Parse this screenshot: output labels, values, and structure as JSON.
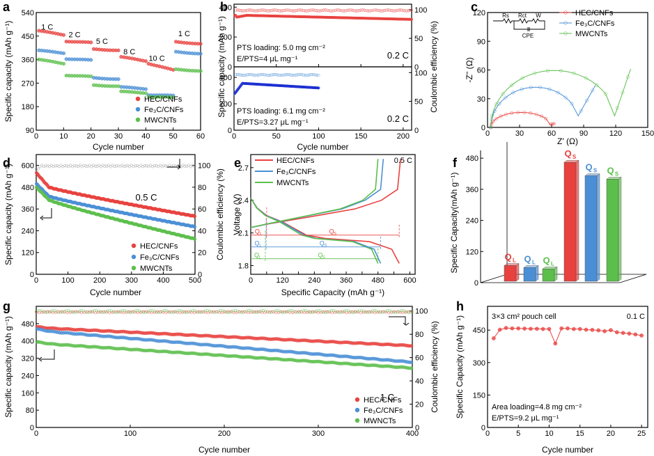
{
  "colors": {
    "hec": "#e8413e",
    "fe3c": "#4a8fd6",
    "mwcnt": "#5cbf4c",
    "axis": "#000000"
  },
  "chart_data": [
    {
      "panel": "a",
      "type": "scatter",
      "xlabel": "Cycle number",
      "ylabel": "Specific capacity (mAh g⁻¹)",
      "xlim": [
        0,
        60
      ],
      "ylim": [
        90,
        540
      ],
      "xticks": [
        0,
        10,
        20,
        30,
        40,
        50,
        60
      ],
      "yticks": [
        90,
        180,
        270,
        360,
        450,
        540
      ],
      "rate_labels": [
        {
          "text": "1 C",
          "x": 4,
          "y": 475
        },
        {
          "text": "2 C",
          "x": 14,
          "y": 445
        },
        {
          "text": "5 C",
          "x": 24,
          "y": 420
        },
        {
          "text": "8 C",
          "x": 34,
          "y": 380
        },
        {
          "text": "10 C",
          "x": 44,
          "y": 355
        },
        {
          "text": "1 C",
          "x": 54,
          "y": 450
        }
      ],
      "legend": [
        "HEC/CNFs",
        "Fe₃C/CNFs",
        "MWCNTs"
      ],
      "series": [
        {
          "name": "HEC/CNFs",
          "color_key": "hec",
          "steps": [
            {
              "from": 1,
              "to": 10,
              "start": 470,
              "end": 455
            },
            {
              "from": 11,
              "to": 20,
              "start": 430,
              "end": 425
            },
            {
              "from": 21,
              "to": 30,
              "start": 400,
              "end": 395
            },
            {
              "from": 31,
              "to": 40,
              "start": 370,
              "end": 355
            },
            {
              "from": 41,
              "to": 50,
              "start": 345,
              "end": 320
            },
            {
              "from": 51,
              "to": 60,
              "start": 428,
              "end": 420
            }
          ]
        },
        {
          "name": "Fe₃C/CNFs",
          "color_key": "fe3c",
          "steps": [
            {
              "from": 1,
              "to": 10,
              "start": 395,
              "end": 385
            },
            {
              "from": 11,
              "to": 20,
              "start": 363,
              "end": 358
            },
            {
              "from": 21,
              "to": 30,
              "start": 290,
              "end": 285
            },
            {
              "from": 31,
              "to": 40,
              "start": 255,
              "end": 248
            },
            {
              "from": 41,
              "to": 50,
              "start": 225,
              "end": 222
            },
            {
              "from": 51,
              "to": 60,
              "start": 390,
              "end": 382
            }
          ]
        },
        {
          "name": "MWCNTs",
          "color_key": "mwcnt",
          "steps": [
            {
              "from": 1,
              "to": 10,
              "start": 360,
              "end": 345
            },
            {
              "from": 11,
              "to": 20,
              "start": 300,
              "end": 295
            },
            {
              "from": 21,
              "to": 30,
              "start": 262,
              "end": 258
            },
            {
              "from": 31,
              "to": 40,
              "start": 238,
              "end": 232
            },
            {
              "from": 41,
              "to": 50,
              "start": 218,
              "end": 215
            },
            {
              "from": 51,
              "to": 60,
              "start": 323,
              "end": 316
            }
          ]
        }
      ]
    },
    {
      "panel": "b",
      "type": "scatter",
      "xlabel": "Cycle number",
      "ylabel": "Specific capacity (mAh g⁻¹)",
      "y2label": "Coulombic efficiency (%)",
      "xlim": [
        0,
        210
      ],
      "xticks": [
        0,
        50,
        100,
        150,
        200
      ],
      "top": {
        "ylim": [
          0,
          420
        ],
        "yticks": [
          0,
          200,
          400
        ],
        "y2ticks": [
          0,
          50,
          100
        ],
        "loading": "PTS loading: 5.0 mg cm⁻²",
        "ratio": "E/PTS=4 μL mg⁻¹",
        "rate": "0.2 C",
        "capacity": {
          "cycles": 210,
          "start": 345,
          "min": 330,
          "plateau": 345,
          "end": 318
        },
        "ce": {
          "cycles": 210,
          "value": 99
        }
      },
      "bottom": {
        "ylim": [
          0,
          480
        ],
        "yticks": [
          0,
          200,
          400
        ],
        "y2ticks": [
          0,
          50,
          100
        ],
        "loading": "PTS loading: 6.1 mg cm⁻²",
        "ratio": "E/PTS=3.27 μL mg⁻¹",
        "rate": "0.2 C",
        "capacity": {
          "cycles": 100,
          "start": 270,
          "plateau": 355,
          "end": 320
        },
        "ce": {
          "cycles": 100,
          "value": 96
        }
      }
    },
    {
      "panel": "c",
      "type": "line",
      "xlabel": "Z' (Ω)",
      "ylabel": "-Z'' (Ω)",
      "xlim": [
        0,
        150
      ],
      "ylim": [
        0,
        120
      ],
      "xticks": [
        0,
        30,
        60,
        90,
        120,
        150
      ],
      "yticks": [
        0,
        30,
        60,
        90,
        120
      ],
      "legend": [
        "HEC/CNFs",
        "Fe₃C/CNFs",
        "MWCNTs"
      ],
      "circuit": {
        "rs": "Rs",
        "rct": "Rct",
        "w": "W",
        "cpe": "CPE"
      },
      "series": [
        {
          "name": "HEC/CNFs",
          "color_key": "hec",
          "semicircle": [
            3,
            60
          ],
          "tail_end": [
            63,
            4
          ]
        },
        {
          "name": "Fe₃C/CNFs",
          "color_key": "fe3c",
          "semicircle": [
            3,
            87
          ],
          "tail_end": [
            101,
            44
          ]
        },
        {
          "name": "MWCNTs",
          "color_key": "mwcnt",
          "semicircle": [
            3,
            122
          ],
          "tail_end": [
            134,
            61
          ]
        }
      ]
    },
    {
      "panel": "d",
      "type": "scatter",
      "xlabel": "Cycle number",
      "ylabel": "Specific capacity (mAh g⁻¹)",
      "y2label": "Coulombic efficiency (%)",
      "xlim": [
        0,
        500
      ],
      "ylim": [
        0,
        660
      ],
      "y2lim": [
        0,
        110
      ],
      "xticks": [
        0,
        100,
        200,
        300,
        400,
        500
      ],
      "yticks": [
        0,
        120,
        240,
        360,
        480,
        600
      ],
      "y2ticks": [
        0,
        20,
        40,
        60,
        80,
        100
      ],
      "rate": "0.5 C",
      "legend": [
        "HEC/CNFs",
        "Fe₃C/CNFs",
        "MWCNTs"
      ],
      "series": [
        {
          "name": "HEC/CNFs",
          "color_key": "hec",
          "start": 560,
          "knee": 480,
          "end": 320
        },
        {
          "name": "Fe₃C/CNFs",
          "color_key": "fe3c",
          "start": 500,
          "knee": 430,
          "end": 262
        },
        {
          "name": "MWCNTs",
          "color_key": "mwcnt",
          "start": 480,
          "knee": 410,
          "end": 195
        }
      ],
      "ce_value": 99.5
    },
    {
      "panel": "e",
      "type": "line",
      "xlabel": "Specific Capacity (mAh g⁻¹)",
      "ylabel": "Voltage (V)",
      "xlim": [
        0,
        620
      ],
      "ylim": [
        1.72,
        2.82
      ],
      "xticks": [
        0,
        60,
        120,
        180,
        240,
        300,
        360,
        420,
        480,
        540,
        600
      ],
      "xticklabels": [
        "0",
        "",
        "120",
        "",
        "240",
        "",
        "360",
        "",
        "480",
        "",
        "600"
      ],
      "yticks": [
        1.8,
        2.1,
        2.4,
        2.7
      ],
      "rate": "0.5 C",
      "legend": [
        "HEC/CNFs",
        "Fe₃C/CNFs",
        "MWCNTs"
      ],
      "series": [
        {
          "name": "HEC/CNFs",
          "color_key": "hec",
          "qh": 60,
          "cap": 560,
          "charge_end": 565
        },
        {
          "name": "Fe₃C/CNFs",
          "color_key": "fe3c",
          "qh": 58,
          "cap": 490,
          "charge_end": 500
        },
        {
          "name": "MWCNTs",
          "color_key": "mwcnt",
          "qh": 55,
          "cap": 480,
          "charge_end": 480
        }
      ],
      "q_labels": {
        "ql": "Q",
        "ql_sub": "L",
        "qs": "Q",
        "qs_sub": "S"
      }
    },
    {
      "panel": "f",
      "type": "bar",
      "ylabel": "Specific Capacity(mAh g⁻¹)",
      "ylim": [
        0,
        510
      ],
      "yticks": [
        0,
        120,
        240,
        360,
        480
      ],
      "bars": [
        {
          "label": "Q",
          "sub": "L",
          "color_key": "hec",
          "value": 82
        },
        {
          "label": "Q",
          "sub": "L",
          "color_key": "fe3c",
          "value": 74
        },
        {
          "label": "Q",
          "sub": "L",
          "color_key": "mwcnt",
          "value": 69
        },
        {
          "label": "Q",
          "sub": "S",
          "color_key": "hec",
          "value": 480
        },
        {
          "label": "Q",
          "sub": "S",
          "color_key": "fe3c",
          "value": 428
        },
        {
          "label": "Q",
          "sub": "S",
          "color_key": "mwcnt",
          "value": 415
        }
      ]
    },
    {
      "panel": "g",
      "type": "scatter",
      "xlabel": "Cycle number",
      "ylabel": "Specific capacity (mAh g⁻¹)",
      "y2label": "Coulombic efficiency (%)",
      "xlim": [
        0,
        400
      ],
      "ylim": [
        0,
        560
      ],
      "y2lim": [
        0,
        104
      ],
      "xticks": [
        0,
        100,
        200,
        300,
        400
      ],
      "yticks": [
        0,
        80,
        160,
        240,
        320,
        400,
        480
      ],
      "y2ticks": [
        0,
        20,
        40,
        60,
        80,
        100
      ],
      "rate": "1 C",
      "legend": [
        "HEC/CNFs",
        "Fe₃C/CNFs",
        "MWNCTs"
      ],
      "series": [
        {
          "name": "HEC/CNFs",
          "color_key": "hec",
          "start": 465,
          "end": 378
        },
        {
          "name": "Fe₃C/CNFs",
          "color_key": "fe3c",
          "start": 455,
          "end": 302
        },
        {
          "name": "MWNCTs",
          "color_key": "mwcnt",
          "start": 395,
          "end": 275
        }
      ],
      "ce_value": 99.5
    },
    {
      "panel": "h",
      "type": "line",
      "xlabel": "Cycle number",
      "ylabel": "Specific Capacity (mAh g⁻¹)",
      "xlim": [
        0,
        26
      ],
      "ylim": [
        0,
        560
      ],
      "xticks": [
        0,
        5,
        10,
        15,
        20,
        25
      ],
      "yticks": [
        0,
        150,
        300,
        450
      ],
      "cell": "3×3 cm² pouch cell",
      "rate": "0.1 C",
      "area_loading": "Area loading=4.8 mg cm⁻²",
      "ratio": "E/PTS=9.2 μL mg⁻¹",
      "series": [
        {
          "name": "HEC/CNFs",
          "color_key": "hec",
          "x": [
            1,
            2,
            3,
            4,
            5,
            6,
            7,
            8,
            9,
            10,
            11,
            12,
            13,
            14,
            15,
            16,
            17,
            18,
            19,
            20,
            21,
            22,
            23,
            24,
            25
          ],
          "y": [
            412,
            452,
            460,
            458,
            458,
            457,
            456,
            456,
            455,
            455,
            388,
            458,
            458,
            455,
            455,
            452,
            451,
            449,
            445,
            450,
            440,
            437,
            434,
            430,
            425
          ]
        }
      ]
    }
  ]
}
